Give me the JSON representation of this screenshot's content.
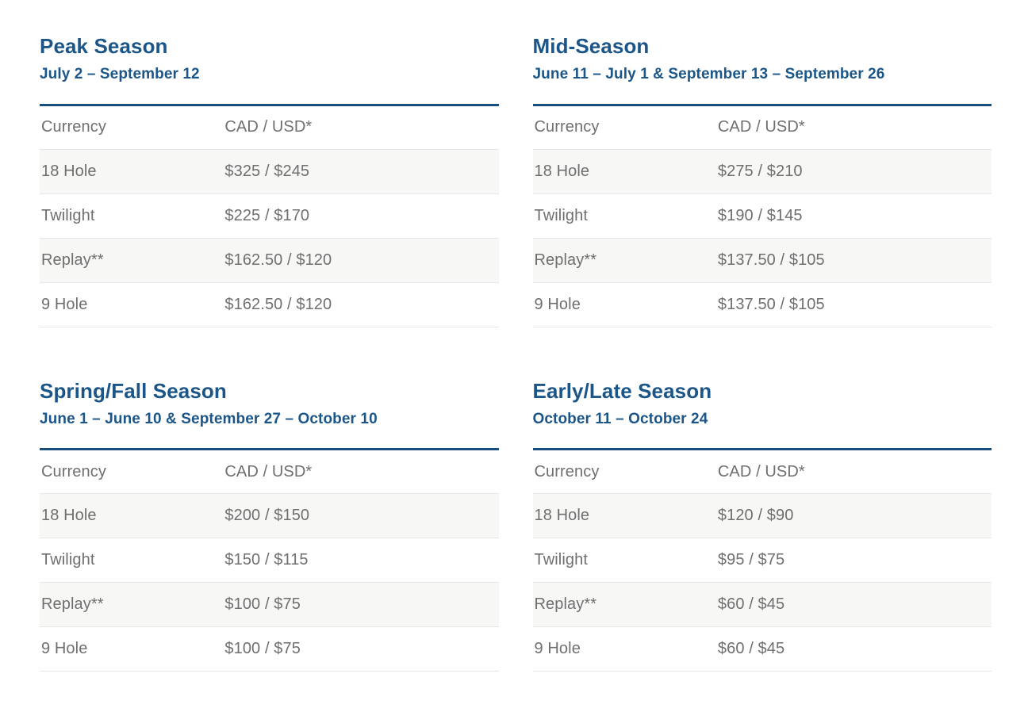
{
  "page": {
    "background": "#ffffff",
    "heading_color": "#1c5688",
    "rule_color": "#174e7c",
    "text_color": "#6f6f6f",
    "alt_row_bg": "#f7f7f6",
    "divider_color": "#e7e7e7"
  },
  "sections": [
    {
      "title": "Peak Season",
      "dates": "July 2 – September 12",
      "header_label": "Currency",
      "header_value": "CAD / USD*",
      "rows": [
        {
          "label": "18 Hole",
          "value": "$325 / $245"
        },
        {
          "label": "Twilight",
          "value": "$225 / $170"
        },
        {
          "label": "Replay**",
          "value": "$162.50 / $120"
        },
        {
          "label": "9 Hole",
          "value": "$162.50 / $120"
        }
      ]
    },
    {
      "title": "Mid-Season",
      "dates": "June 11 – July 1 & September 13 – September 26",
      "header_label": "Currency",
      "header_value": "CAD / USD*",
      "rows": [
        {
          "label": "18 Hole",
          "value": "$275 / $210"
        },
        {
          "label": "Twilight",
          "value": "$190 / $145"
        },
        {
          "label": "Replay**",
          "value": "$137.50 / $105"
        },
        {
          "label": "9 Hole",
          "value": "$137.50 / $105"
        }
      ]
    },
    {
      "title": "Spring/Fall Season",
      "dates": "June 1 – June 10 & September 27 – October 10",
      "header_label": "Currency",
      "header_value": "CAD / USD*",
      "rows": [
        {
          "label": "18 Hole",
          "value": "$200 / $150"
        },
        {
          "label": "Twilight",
          "value": "$150 / $115"
        },
        {
          "label": "Replay**",
          "value": "$100 / $75"
        },
        {
          "label": "9 Hole",
          "value": "$100 / $75"
        }
      ]
    },
    {
      "title": "Early/Late Season",
      "dates": "October 11 – October 24",
      "header_label": "Currency",
      "header_value": "CAD / USD*",
      "rows": [
        {
          "label": "18 Hole",
          "value": "$120 / $90"
        },
        {
          "label": "Twilight",
          "value": "$95 / $75"
        },
        {
          "label": "Replay**",
          "value": "$60 / $45"
        },
        {
          "label": "9 Hole",
          "value": "$60 / $45"
        }
      ]
    }
  ]
}
